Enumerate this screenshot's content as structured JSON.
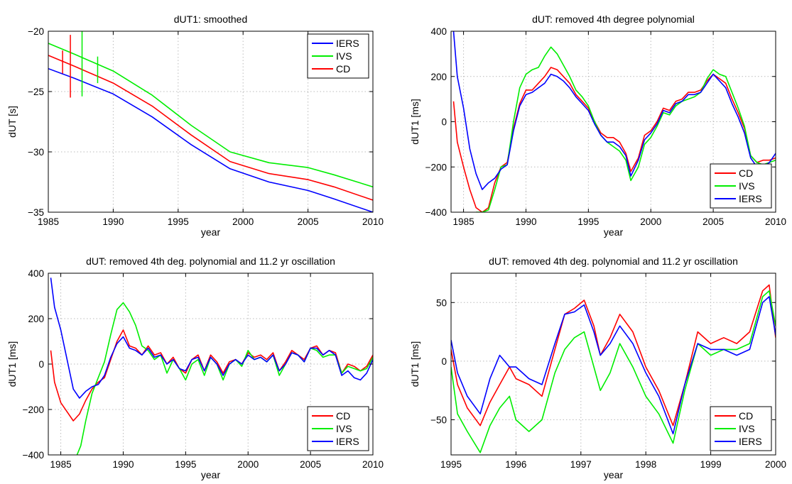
{
  "colors": {
    "red": "#ff0000",
    "green": "#00ee00",
    "blue": "#0000ff"
  },
  "chart_data": [
    {
      "type": "line",
      "title": "dUT1: smoothed",
      "xlabel": "year",
      "ylabel": "dUT [s]",
      "xlim": [
        1985,
        2010
      ],
      "ylim": [
        -35,
        -20
      ],
      "xticks": [
        1985,
        1990,
        1995,
        2000,
        2005,
        2010
      ],
      "yticks": [
        -35,
        -30,
        -25,
        -20
      ],
      "grid": true,
      "legend_position": "top-right",
      "series": [
        {
          "name": "IERS",
          "color": "#0000ff",
          "x": [
            1985,
            1987,
            1990,
            1993,
            1996,
            1999,
            2002,
            2005,
            2007,
            2010
          ],
          "y": [
            -23.1,
            -23.9,
            -25.2,
            -27.1,
            -29.4,
            -31.4,
            -32.5,
            -33.2,
            -33.9,
            -35.0
          ]
        },
        {
          "name": "IVS",
          "color": "#00ee00",
          "x": [
            1985,
            1987,
            1990,
            1993,
            1996,
            1999,
            2002,
            2005,
            2007,
            2010
          ],
          "y": [
            -21.0,
            -21.9,
            -23.3,
            -25.3,
            -27.8,
            -30.0,
            -30.9,
            -31.3,
            -31.9,
            -32.9
          ]
        },
        {
          "name": "CD",
          "color": "#ff0000",
          "x": [
            1985,
            1987,
            1990,
            1993,
            1996,
            1999,
            2002,
            2005,
            2007,
            2010
          ],
          "y": [
            -22.0,
            -22.9,
            -24.3,
            -26.2,
            -28.6,
            -30.8,
            -31.8,
            -32.3,
            -32.9,
            -34.0
          ]
        }
      ],
      "spikes": [
        {
          "series": "CD",
          "x": 1986.7,
          "y": [
            -25.5,
            -20.3
          ]
        },
        {
          "series": "IVS",
          "x": 1987.6,
          "y": [
            -25.4,
            -20.0
          ]
        },
        {
          "series": "IVS",
          "x": 1988.8,
          "y": [
            -24.3,
            -22.1
          ]
        },
        {
          "series": "CD",
          "x": 1986.1,
          "y": [
            -23.5,
            -21.6
          ]
        }
      ]
    },
    {
      "type": "line",
      "title": "dUT: removed 4th degree polynomial",
      "xlabel": "year",
      "ylabel": "dUT1 [ms]",
      "xlim": [
        1984,
        2010
      ],
      "ylim": [
        -400,
        400
      ],
      "xticks": [
        1985,
        1990,
        1995,
        2000,
        2005,
        2010
      ],
      "yticks": [
        -400,
        -200,
        0,
        200,
        400
      ],
      "grid": true,
      "legend_position": "bottom-right",
      "series": [
        {
          "name": "CD",
          "color": "#ff0000",
          "x": [
            1984.2,
            1984.5,
            1985,
            1985.5,
            1986,
            1986.5,
            1987,
            1987.5,
            1988,
            1988.5,
            1989,
            1989.5,
            1990,
            1990.5,
            1991,
            1991.5,
            1992,
            1992.5,
            1993,
            1993.5,
            1994,
            1994.5,
            1995,
            1995.5,
            1996,
            1996.5,
            1997,
            1997.5,
            1998,
            1998.4,
            1999,
            1999.5,
            2000,
            2000.5,
            2001,
            2001.5,
            2002,
            2002.5,
            2003,
            2003.5,
            2004,
            2004.5,
            2005,
            2005.5,
            2006,
            2006.5,
            2007,
            2007.5,
            2008,
            2008.5,
            2009,
            2009.5,
            2010
          ],
          "y": [
            90,
            -90,
            -200,
            -300,
            -380,
            -400,
            -380,
            -270,
            -200,
            -180,
            -30,
            80,
            140,
            140,
            170,
            200,
            240,
            230,
            200,
            170,
            120,
            90,
            60,
            0,
            -50,
            -70,
            -70,
            -90,
            -140,
            -220,
            -160,
            -60,
            -40,
            0,
            60,
            50,
            90,
            100,
            130,
            130,
            140,
            180,
            210,
            190,
            170,
            100,
            40,
            -30,
            -150,
            -180,
            -170,
            -170,
            -160
          ]
        },
        {
          "name": "IVS",
          "color": "#00ee00",
          "x": [
            1986,
            1986.5,
            1987,
            1987.5,
            1988,
            1988.5,
            1989,
            1989.5,
            1990,
            1990.5,
            1991,
            1991.5,
            1992,
            1992.5,
            1993,
            1993.5,
            1994,
            1994.5,
            1995,
            1995.5,
            1996,
            1996.5,
            1997,
            1997.5,
            1998,
            1998.4,
            1999,
            1999.5,
            2000,
            2000.5,
            2001,
            2001.5,
            2002,
            2002.5,
            2003,
            2003.5,
            2004,
            2004.5,
            2005,
            2005.5,
            2006,
            2006.5,
            2007,
            2007.5,
            2008,
            2008.5,
            2009,
            2009.5,
            2010
          ],
          "y": [
            -400,
            -400,
            -390,
            -300,
            -200,
            -190,
            0,
            150,
            210,
            230,
            240,
            290,
            330,
            300,
            250,
            200,
            140,
            110,
            70,
            0,
            -60,
            -90,
            -110,
            -130,
            -170,
            -260,
            -200,
            -100,
            -70,
            -20,
            40,
            30,
            70,
            90,
            100,
            110,
            130,
            190,
            230,
            210,
            200,
            130,
            60,
            -20,
            -150,
            -180,
            -190,
            -180,
            -170
          ]
        },
        {
          "name": "IERS",
          "color": "#0000ff",
          "x": [
            1984.2,
            1984.5,
            1985,
            1985.5,
            1986,
            1986.5,
            1987,
            1987.5,
            1988,
            1988.5,
            1989,
            1989.5,
            1990,
            1990.5,
            1991,
            1991.5,
            1992,
            1992.5,
            1993,
            1993.5,
            1994,
            1994.5,
            1995,
            1995.5,
            1996,
            1996.5,
            1997,
            1997.5,
            1998,
            1998.4,
            1999,
            1999.5,
            2000,
            2000.5,
            2001,
            2001.5,
            2002,
            2002.5,
            2003,
            2003.5,
            2004,
            2004.5,
            2005,
            2005.5,
            2006,
            2006.5,
            2007,
            2007.5,
            2008,
            2008.5,
            2009,
            2009.5,
            2010
          ],
          "y": [
            400,
            200,
            60,
            -120,
            -230,
            -300,
            -270,
            -250,
            -210,
            -190,
            -40,
            70,
            120,
            130,
            150,
            170,
            210,
            200,
            180,
            150,
            110,
            80,
            50,
            -10,
            -60,
            -90,
            -90,
            -110,
            -150,
            -240,
            -170,
            -80,
            -50,
            -10,
            50,
            40,
            80,
            90,
            120,
            120,
            130,
            170,
            210,
            180,
            150,
            80,
            20,
            -50,
            -160,
            -200,
            -200,
            -180,
            -140
          ]
        }
      ]
    },
    {
      "type": "line",
      "title": "dUT: removed 4th deg. polynomial and 11.2 yr oscillation",
      "xlabel": "year",
      "ylabel": "dUT1 [ms]",
      "xlim": [
        1984,
        2010
      ],
      "ylim": [
        -400,
        400
      ],
      "xticks": [
        1985,
        1990,
        1995,
        2000,
        2005,
        2010
      ],
      "yticks": [
        -400,
        -200,
        0,
        200,
        400
      ],
      "grid": true,
      "legend_position": "bottom-right",
      "series": [
        {
          "name": "CD",
          "color": "#ff0000",
          "x": [
            1984.2,
            1984.5,
            1985,
            1985.5,
            1986,
            1986.5,
            1987,
            1987.5,
            1988,
            1988.5,
            1989,
            1989.5,
            1990,
            1990.5,
            1991,
            1991.5,
            1992,
            1992.5,
            1993,
            1993.5,
            1994,
            1994.5,
            1995,
            1995.5,
            1996,
            1996.5,
            1997,
            1997.5,
            1998,
            1998.5,
            1999,
            1999.5,
            2000,
            2000.5,
            2001,
            2001.5,
            2002,
            2002.5,
            2003,
            2003.5,
            2004,
            2004.5,
            2005,
            2005.5,
            2006,
            2006.5,
            2007,
            2007.5,
            2008,
            2008.5,
            2009,
            2009.5,
            2010
          ],
          "y": [
            60,
            -80,
            -170,
            -210,
            -250,
            -220,
            -160,
            -110,
            -80,
            -60,
            20,
            100,
            150,
            80,
            70,
            40,
            80,
            40,
            50,
            0,
            30,
            -20,
            -40,
            20,
            40,
            -30,
            40,
            10,
            -40,
            10,
            20,
            0,
            50,
            30,
            40,
            20,
            50,
            -30,
            10,
            60,
            40,
            20,
            70,
            80,
            40,
            60,
            50,
            -40,
            0,
            -10,
            -30,
            -10,
            40
          ]
        },
        {
          "name": "IVS",
          "color": "#00ee00",
          "x": [
            1986.3,
            1986.6,
            1987,
            1987.5,
            1988,
            1988.5,
            1989,
            1989.5,
            1990,
            1990.5,
            1991,
            1991.5,
            1992,
            1992.5,
            1993,
            1993.5,
            1994,
            1994.5,
            1995,
            1995.5,
            1996,
            1996.5,
            1997,
            1997.5,
            1998,
            1998.5,
            1999,
            1999.5,
            2000,
            2000.5,
            2001,
            2001.5,
            2002,
            2002.5,
            2003,
            2003.5,
            2004,
            2004.5,
            2005,
            2005.5,
            2006,
            2006.5,
            2007,
            2007.5,
            2008,
            2008.5,
            2009,
            2009.5,
            2010
          ],
          "y": [
            -400,
            -360,
            -250,
            -130,
            -60,
            10,
            130,
            240,
            270,
            230,
            170,
            80,
            60,
            20,
            40,
            -40,
            20,
            -20,
            -70,
            0,
            20,
            -50,
            30,
            0,
            -70,
            0,
            20,
            -10,
            60,
            20,
            30,
            10,
            40,
            -50,
            0,
            50,
            40,
            10,
            70,
            60,
            30,
            40,
            40,
            -40,
            -10,
            -20,
            -30,
            -20,
            30
          ]
        },
        {
          "name": "IERS",
          "color": "#0000ff",
          "x": [
            1984.2,
            1984.5,
            1985,
            1985.5,
            1986,
            1986.5,
            1987,
            1987.5,
            1988,
            1988.5,
            1989,
            1989.5,
            1990,
            1990.5,
            1991,
            1991.5,
            1992,
            1992.5,
            1993,
            1993.5,
            1994,
            1994.5,
            1995,
            1995.5,
            1996,
            1996.5,
            1997,
            1997.5,
            1998,
            1998.5,
            1999,
            1999.5,
            2000,
            2000.5,
            2001,
            2001.5,
            2002,
            2002.5,
            2003,
            2003.5,
            2004,
            2004.5,
            2005,
            2005.5,
            2006,
            2006.5,
            2007,
            2007.5,
            2008,
            2008.5,
            2009,
            2009.5,
            2010
          ],
          "y": [
            380,
            250,
            150,
            20,
            -110,
            -150,
            -120,
            -100,
            -90,
            -50,
            30,
            90,
            120,
            70,
            60,
            40,
            70,
            30,
            40,
            0,
            20,
            -20,
            -30,
            20,
            30,
            -30,
            30,
            0,
            -50,
            0,
            20,
            0,
            40,
            20,
            30,
            10,
            40,
            -30,
            0,
            50,
            40,
            10,
            70,
            70,
            40,
            60,
            40,
            -50,
            -30,
            -60,
            -70,
            -40,
            20
          ]
        }
      ]
    },
    {
      "type": "line",
      "title": "dUT: removed 4th deg. polynomial and 11.2 yr oscillation",
      "xlabel": "year",
      "ylabel": "dUT1 [ms]",
      "xlim": [
        1995,
        2000
      ],
      "ylim": [
        -80,
        75
      ],
      "xticks": [
        1995,
        1996,
        1997,
        1998,
        1999,
        2000
      ],
      "yticks": [
        -50,
        0,
        50
      ],
      "grid": true,
      "legend_position": "bottom-right",
      "series": [
        {
          "name": "CD",
          "color": "#ff0000",
          "x": [
            1995,
            1995.1,
            1995.25,
            1995.45,
            1995.6,
            1995.75,
            1995.9,
            1996,
            1996.2,
            1996.4,
            1996.6,
            1996.75,
            1996.9,
            1997.05,
            1997.2,
            1997.3,
            1997.45,
            1997.6,
            1997.8,
            1998.0,
            1998.2,
            1998.42,
            1998.6,
            1998.8,
            1999.0,
            1999.2,
            1999.4,
            1999.6,
            1999.8,
            1999.9,
            2000
          ],
          "y": [
            10,
            -20,
            -40,
            -55,
            -35,
            -20,
            -5,
            -15,
            -20,
            -30,
            10,
            40,
            45,
            52,
            30,
            5,
            20,
            40,
            25,
            -5,
            -25,
            -55,
            -20,
            25,
            15,
            20,
            15,
            25,
            60,
            65,
            20
          ]
        },
        {
          "name": "IVS",
          "color": "#00ee00",
          "x": [
            1995,
            1995.1,
            1995.25,
            1995.45,
            1995.6,
            1995.75,
            1995.9,
            1996,
            1996.2,
            1996.4,
            1996.6,
            1996.75,
            1996.9,
            1997.05,
            1997.2,
            1997.3,
            1997.45,
            1997.6,
            1997.8,
            1998.0,
            1998.2,
            1998.42,
            1998.6,
            1998.8,
            1999.0,
            1999.2,
            1999.4,
            1999.6,
            1999.8,
            1999.9,
            2000
          ],
          "y": [
            -5,
            -45,
            -60,
            -78,
            -55,
            -40,
            -30,
            -50,
            -60,
            -50,
            -10,
            10,
            20,
            25,
            -5,
            -25,
            -10,
            15,
            -5,
            -30,
            -45,
            -70,
            -25,
            15,
            5,
            10,
            10,
            15,
            55,
            60,
            30
          ]
        },
        {
          "name": "IERS",
          "color": "#0000ff",
          "x": [
            1995,
            1995.1,
            1995.25,
            1995.45,
            1995.6,
            1995.75,
            1995.9,
            1996,
            1996.2,
            1996.4,
            1996.6,
            1996.75,
            1996.9,
            1997.05,
            1997.2,
            1997.3,
            1997.45,
            1997.6,
            1997.8,
            1998.0,
            1998.2,
            1998.42,
            1998.6,
            1998.8,
            1999.0,
            1999.2,
            1999.4,
            1999.6,
            1999.8,
            1999.9,
            2000
          ],
          "y": [
            18,
            -10,
            -30,
            -45,
            -15,
            5,
            -5,
            -5,
            -15,
            -20,
            15,
            40,
            42,
            48,
            25,
            5,
            15,
            30,
            15,
            -10,
            -30,
            -62,
            -20,
            15,
            10,
            10,
            5,
            10,
            50,
            55,
            22
          ]
        }
      ]
    }
  ]
}
